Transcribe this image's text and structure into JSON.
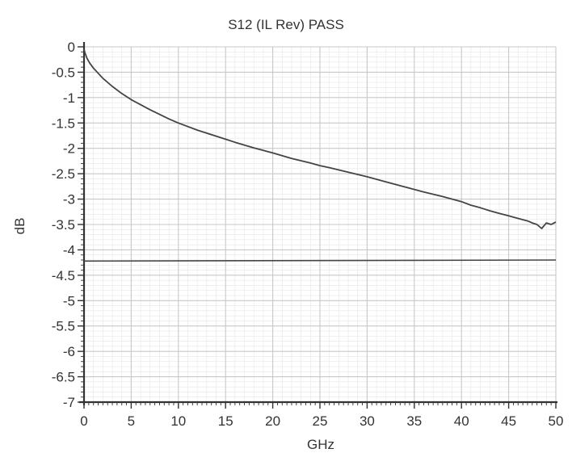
{
  "chart_data": {
    "type": "line",
    "title": "S12 (IL Rev) PASS",
    "xlabel": "GHz",
    "ylabel": "dB",
    "xlim": [
      0,
      50
    ],
    "ylim": [
      -7,
      0
    ],
    "x_ticks": [
      0,
      5,
      10,
      15,
      20,
      25,
      30,
      35,
      40,
      45,
      50
    ],
    "y_ticks": [
      0,
      -0.5,
      -1,
      -1.5,
      -2,
      -2.5,
      -3,
      -3.5,
      -4,
      -4.5,
      -5,
      -5.5,
      -6,
      -6.5,
      -7
    ],
    "x_tick_labels": [
      "0",
      "5",
      "10",
      "15",
      "20",
      "25",
      "30",
      "35",
      "40",
      "45",
      "50"
    ],
    "y_tick_labels": [
      "0",
      "-0.5",
      "-1",
      "-1.5",
      "-2",
      "-2.5",
      "-3",
      "-3.5",
      "-4",
      "-4.5",
      "-5",
      "-5.5",
      "-6",
      "-6.5",
      "-7"
    ],
    "grid": true,
    "series": [
      {
        "x": [
          0,
          0.1,
          0.3,
          0.6,
          1,
          1.5,
          2,
          3,
          4,
          5,
          6,
          7,
          8,
          9,
          10,
          12,
          14,
          15,
          16,
          18,
          20,
          22,
          24,
          25,
          26,
          28,
          30,
          32,
          34,
          35,
          36,
          38,
          40,
          41,
          42,
          43,
          44,
          45,
          46,
          47,
          47.5,
          48,
          48.5,
          49,
          49.5,
          50
        ],
        "y": [
          -0.05,
          -0.12,
          -0.22,
          -0.32,
          -0.42,
          -0.52,
          -0.62,
          -0.78,
          -0.92,
          -1.04,
          -1.14,
          -1.24,
          -1.33,
          -1.42,
          -1.5,
          -1.64,
          -1.76,
          -1.82,
          -1.88,
          -1.99,
          -2.09,
          -2.2,
          -2.29,
          -2.34,
          -2.38,
          -2.47,
          -2.56,
          -2.66,
          -2.76,
          -2.81,
          -2.86,
          -2.95,
          -3.05,
          -3.12,
          -3.17,
          -3.23,
          -3.28,
          -3.33,
          -3.38,
          -3.43,
          -3.47,
          -3.5,
          -3.58,
          -3.47,
          -3.5,
          -3.45
        ]
      },
      {
        "x": [
          0,
          50
        ],
        "y": [
          -4.22,
          -4.2
        ]
      }
    ],
    "colors": {
      "line": "#444444",
      "grid": "#c8c8c8",
      "axis": "#333333",
      "text": "#333333"
    }
  }
}
